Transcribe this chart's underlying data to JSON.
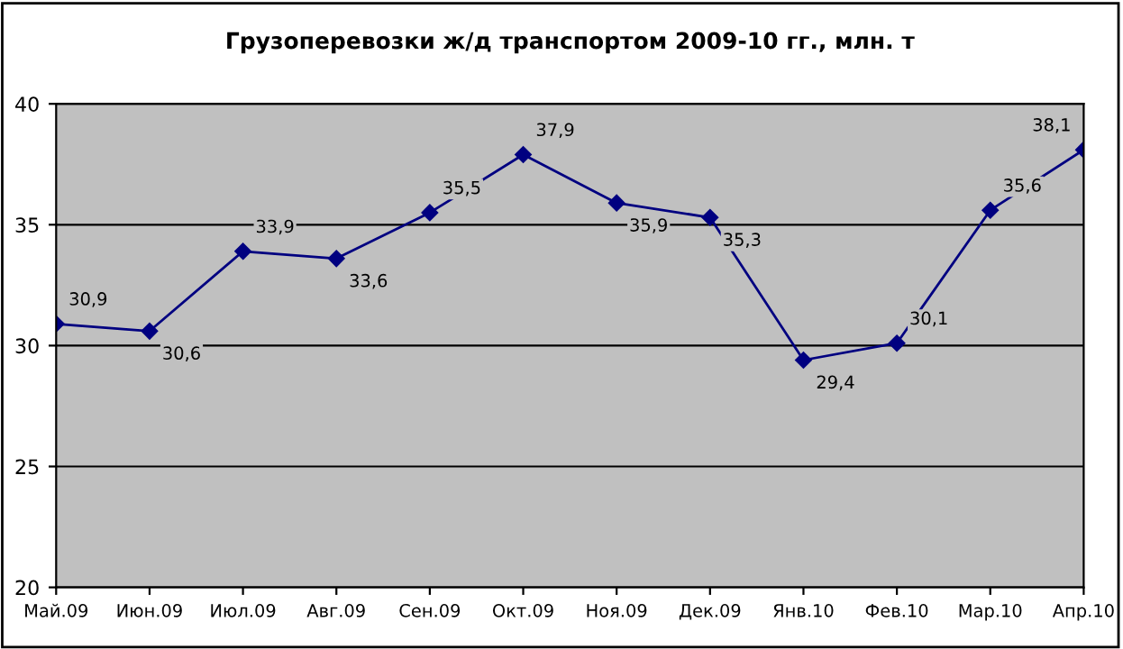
{
  "chart_data": {
    "type": "line",
    "title": "Грузоперевозки ж/д транспортом 2009-10 гг., млн. т",
    "categories": [
      "Май.09",
      "Июн.09",
      "Июл.09",
      "Авг.09",
      "Сен.09",
      "Окт.09",
      "Ноя.09",
      "Дек.09",
      "Янв.10",
      "Фев.10",
      "Мар.10",
      "Апр.10"
    ],
    "series": [
      {
        "color": "#000080",
        "values": [
          30.9,
          30.6,
          33.9,
          33.6,
          35.5,
          37.9,
          35.9,
          35.3,
          29.4,
          30.1,
          35.6,
          38.1
        ],
        "value_labels": [
          "30,9",
          "30,6",
          "33,9",
          "33,6",
          "35,5",
          "37,9",
          "35,9",
          "35,3",
          "29,4",
          "30,1",
          "35,6",
          "38,1"
        ]
      }
    ],
    "ylim": [
      20,
      40
    ],
    "yticks": [
      20,
      25,
      30,
      35,
      40
    ],
    "grid": "y",
    "marker": "diamond",
    "line_style": "solid"
  }
}
